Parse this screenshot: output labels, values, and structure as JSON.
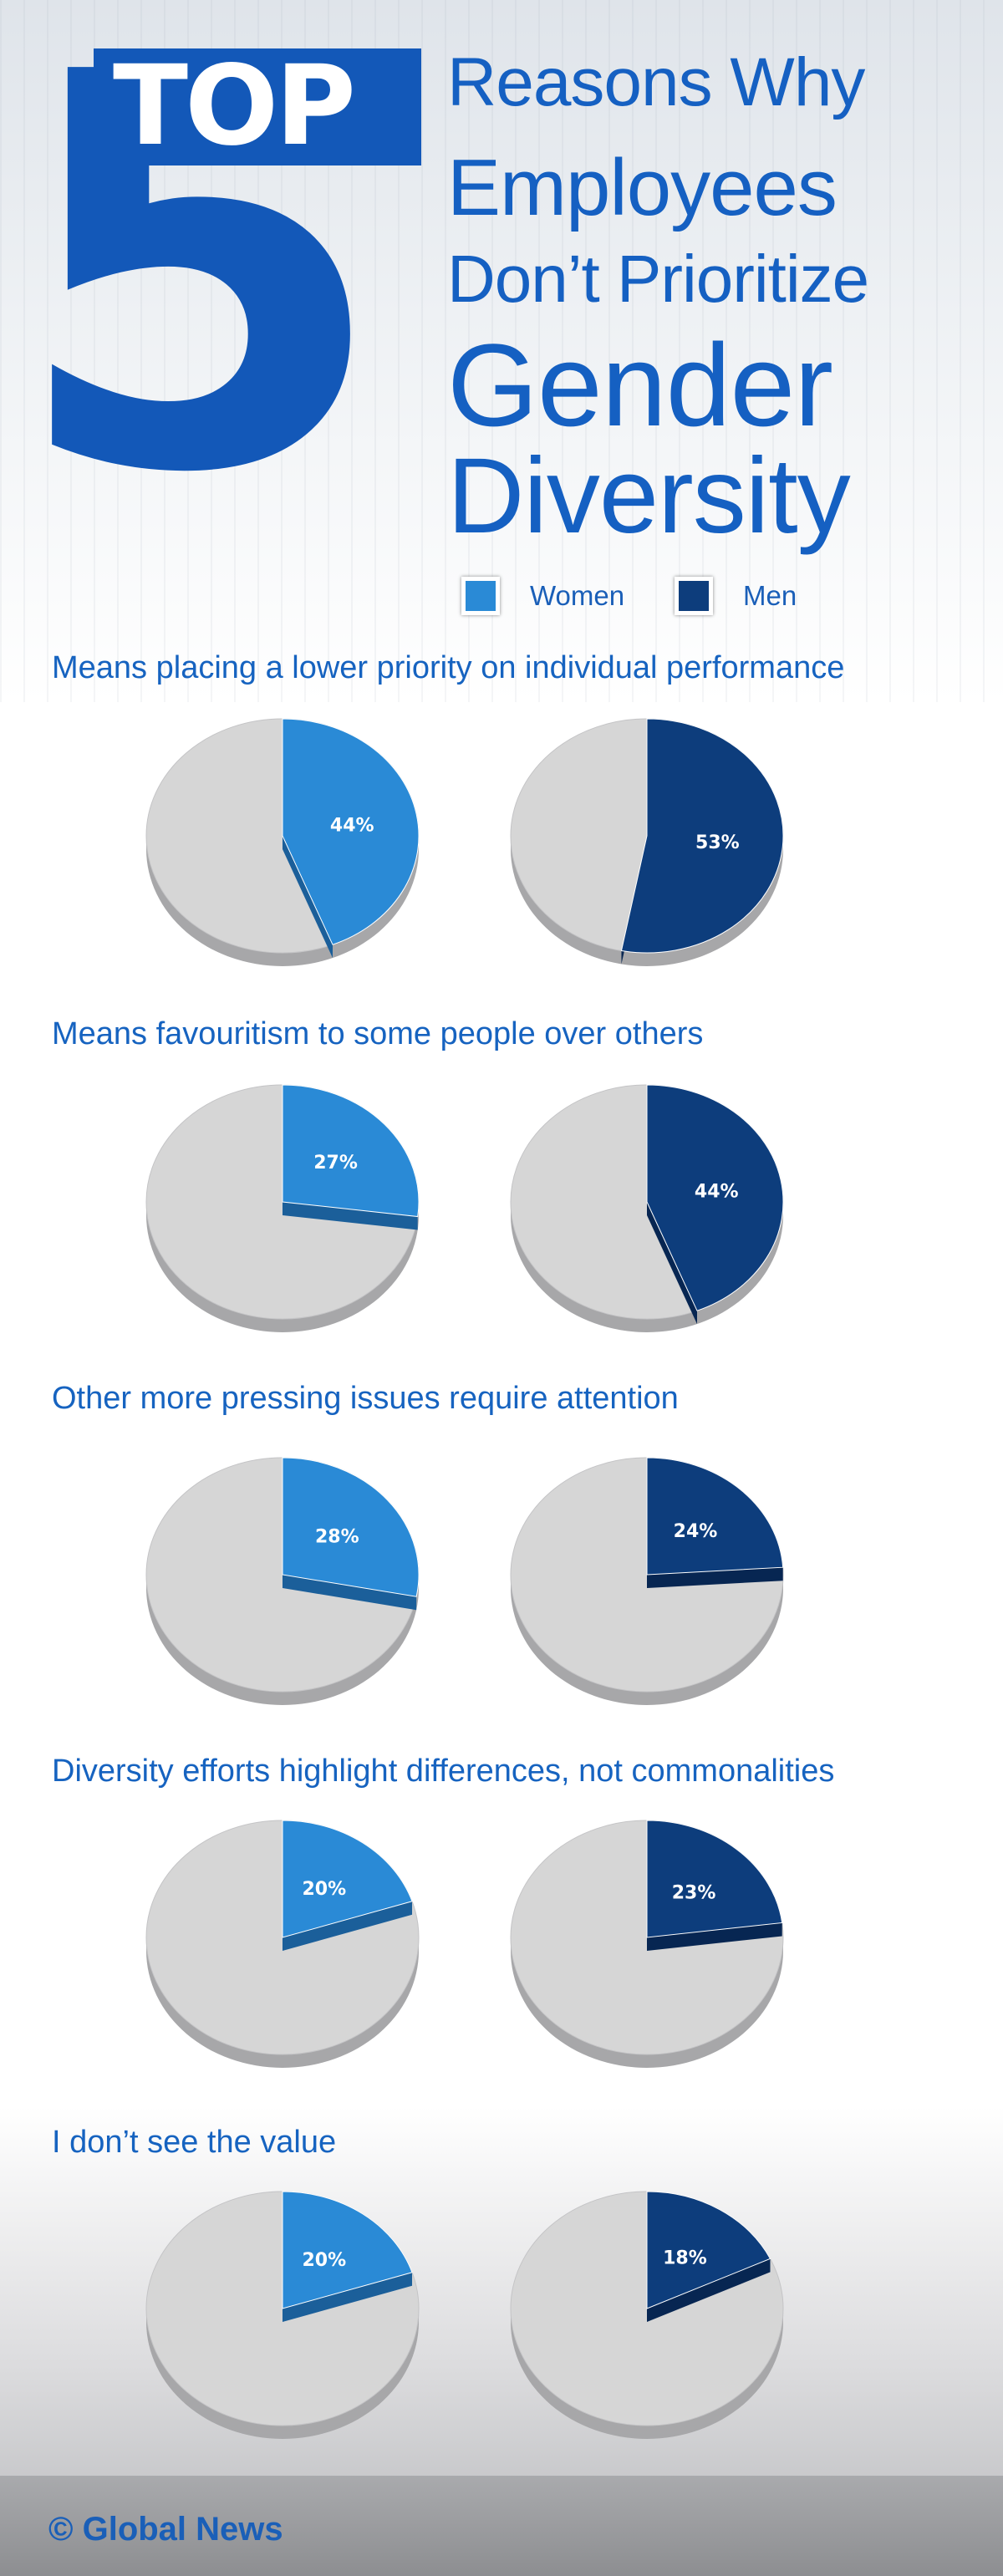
{
  "header": {
    "big_number": "5",
    "top_word": "TOP",
    "lines": [
      "Reasons Why",
      "Employees",
      "Don’t Prioritize",
      "Gender",
      "Diversity"
    ]
  },
  "legend": {
    "women": "Women",
    "men": "Men"
  },
  "colors": {
    "women": "#2a8ad6",
    "men": "#0d3d7c",
    "rest": "#d6d6d6",
    "title": "#1663c0"
  },
  "chart_data": {
    "type": "pie",
    "series_names": [
      "Women",
      "Men"
    ],
    "categories": [
      "Means placing a lower priority on individual performance",
      "Means favouritism to some people over others",
      "Other more pressing issues require attention",
      "Diversity efforts highlight differences, not commonalities",
      "I don’t see the value"
    ],
    "women": [
      44,
      27,
      28,
      20,
      20
    ],
    "men": [
      53,
      44,
      24,
      23,
      18
    ],
    "labels": {
      "women": [
        "44%",
        "27%",
        "28%",
        "20%",
        "20%"
      ],
      "men": [
        "53%",
        "44%",
        "24%",
        "23%",
        "18%"
      ]
    }
  },
  "footer": {
    "text": "© Global News"
  }
}
